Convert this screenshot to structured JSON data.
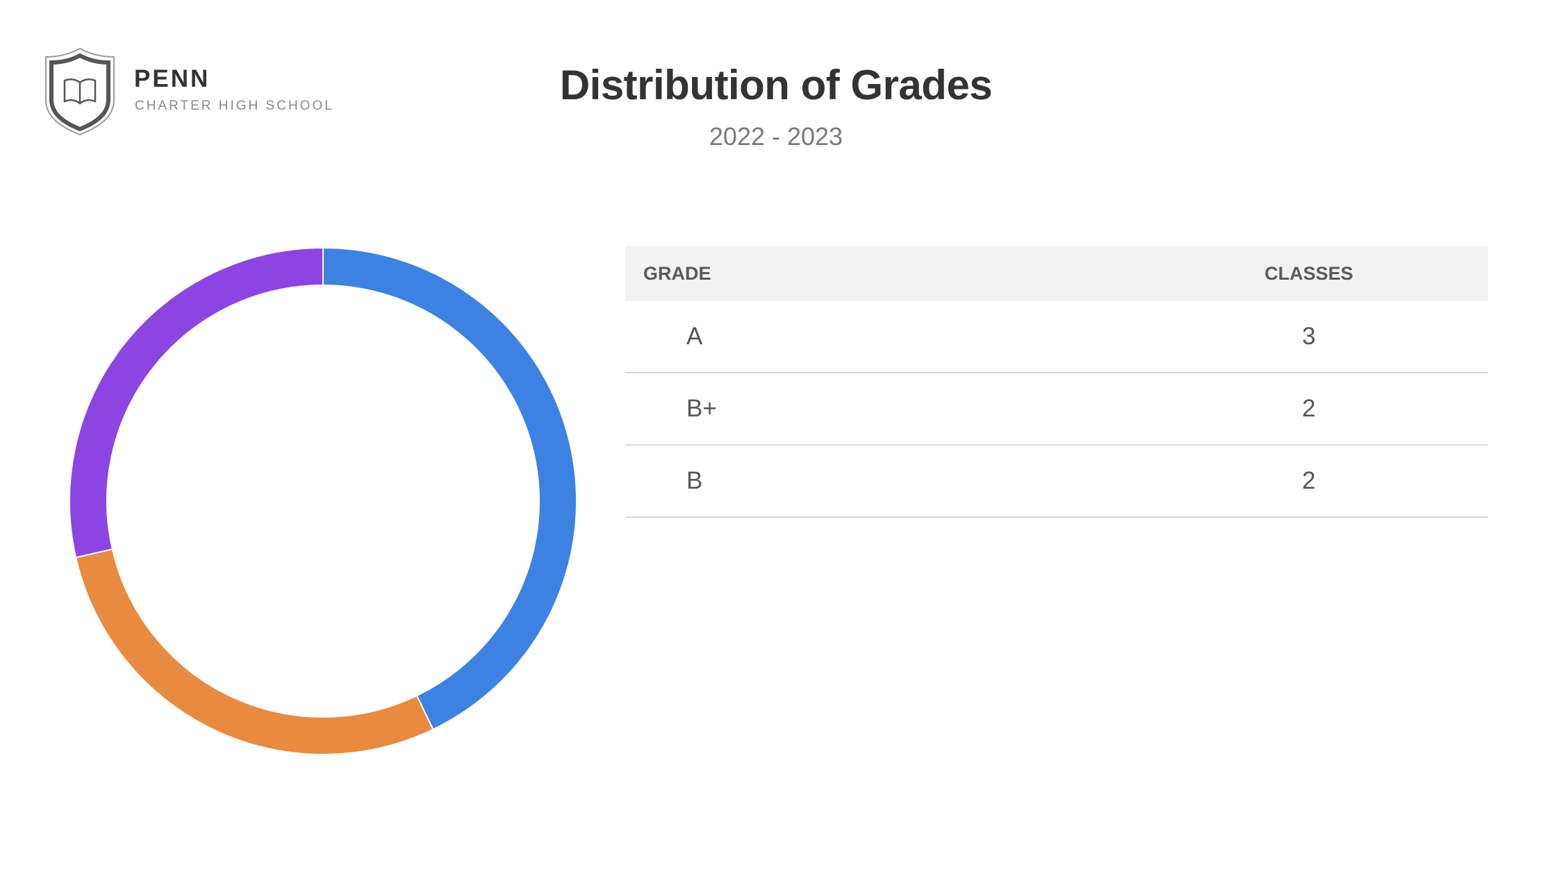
{
  "logo": {
    "name": "PENN",
    "subtitle": "CHARTER HIGH SCHOOL"
  },
  "header": {
    "title": "Distribution of Grades",
    "subtitle": "2022 - 2023"
  },
  "table": {
    "headers": [
      "GRADE",
      "CLASSES"
    ],
    "rows": [
      {
        "grade": "A",
        "classes": "3"
      },
      {
        "grade": "B+",
        "classes": "2"
      },
      {
        "grade": "B",
        "classes": "2"
      }
    ]
  },
  "chart_data": {
    "type": "pie",
    "style": "donut",
    "title": "Distribution of Grades",
    "subtitle": "2022 - 2023",
    "categories": [
      "A",
      "B+",
      "B"
    ],
    "values": [
      3,
      2,
      2
    ],
    "colors": [
      "#3d82e3",
      "#e88a3f",
      "#8c45e3"
    ],
    "start_angle": "12 o'clock, clockwise"
  }
}
